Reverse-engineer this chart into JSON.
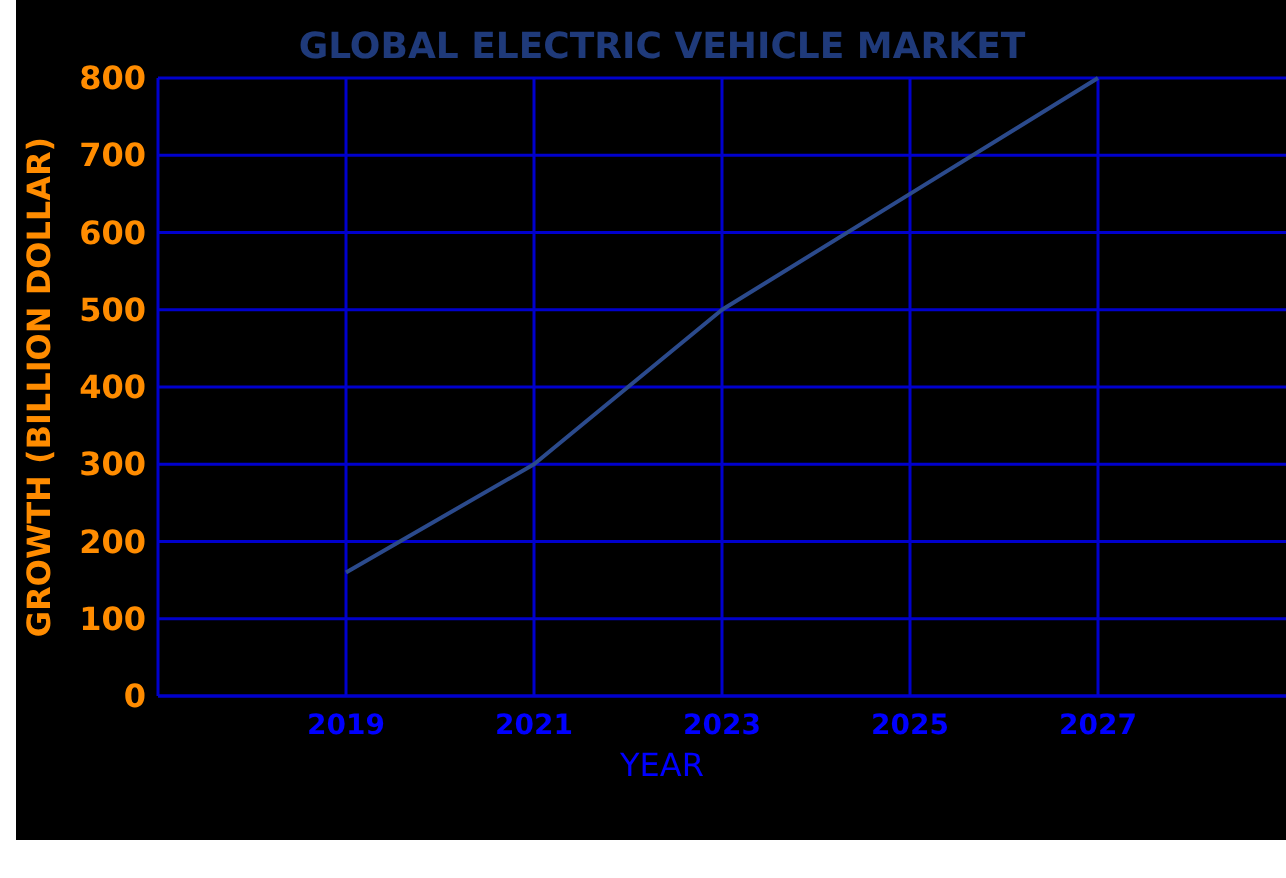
{
  "chart_data": {
    "type": "line",
    "title": "GLOBAL ELECTRIC VEHICLE MARKET",
    "xlabel": "YEAR",
    "ylabel": "GROWTH (BILLION DOLLAR)",
    "x": [
      2019,
      2021,
      2023,
      2025,
      2027
    ],
    "series": [
      {
        "color": "#2b4a8c",
        "values": [
          160,
          300,
          500,
          650,
          800
        ]
      }
    ],
    "xlim": [
      2017,
      2029
    ],
    "xticks": [
      2019,
      2021,
      2023,
      2025,
      2027
    ],
    "ylim": [
      0,
      800
    ],
    "yticks": [
      0,
      100,
      200,
      300,
      400,
      500,
      600,
      700,
      800
    ],
    "grid": true,
    "marker": "none",
    "line_style": "solid"
  }
}
